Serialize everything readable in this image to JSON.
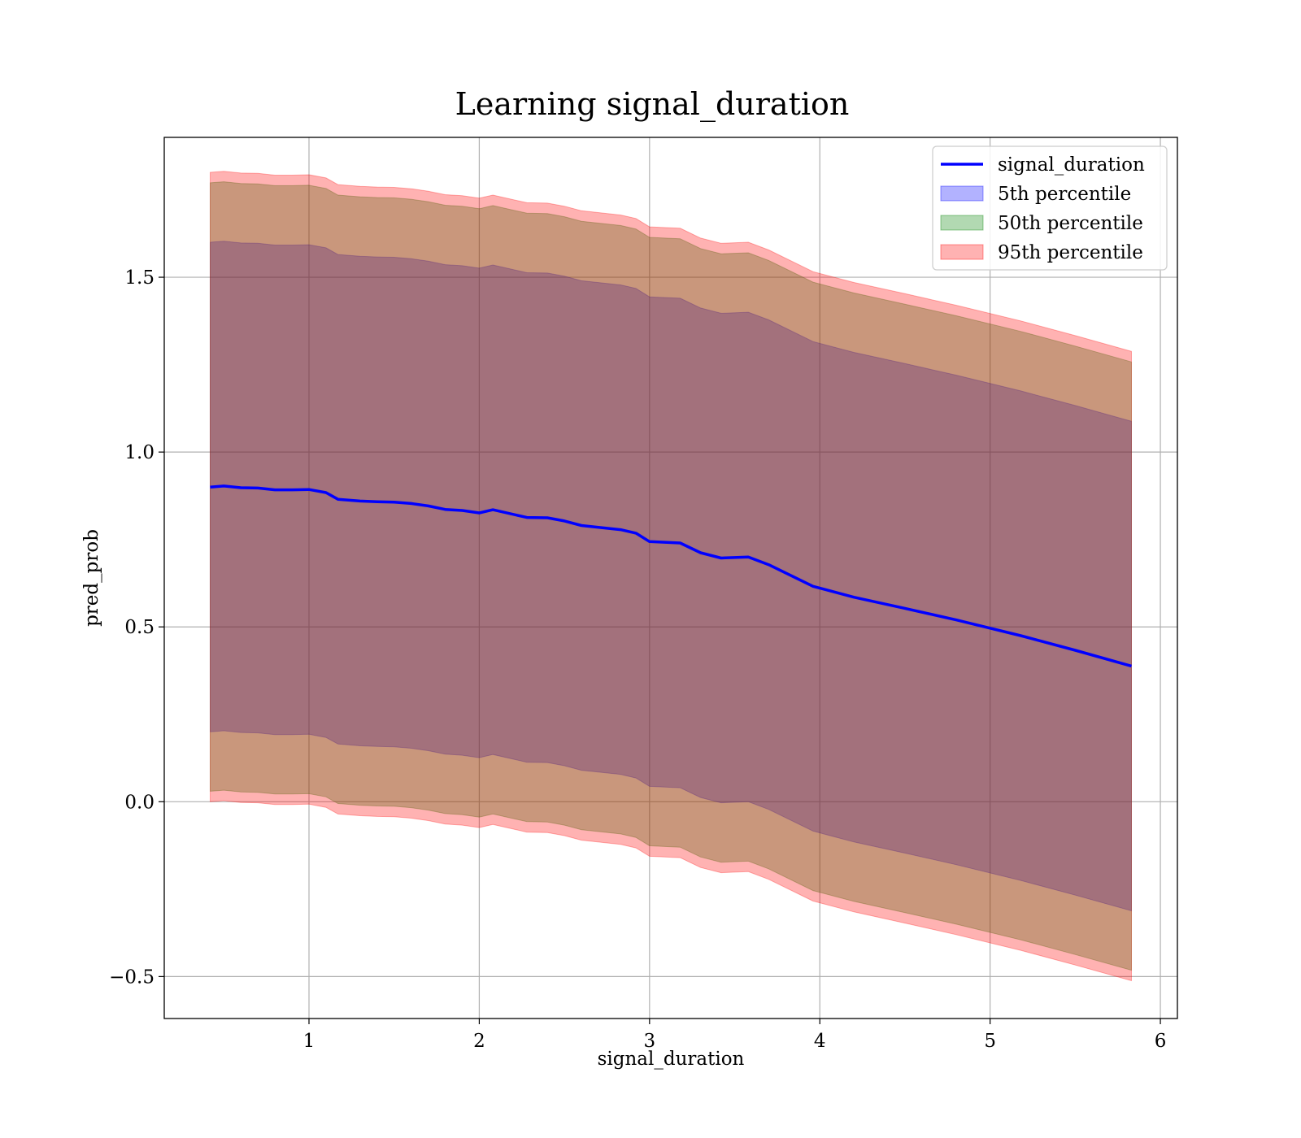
{
  "chart_data": {
    "type": "line",
    "title": "Learning signal_duration",
    "xlabel": "signal_duration",
    "ylabel": "pred_prob",
    "xlim": [
      0.15,
      6.1
    ],
    "ylim": [
      -0.62,
      1.9
    ],
    "xticks": [
      1,
      2,
      3,
      4,
      5,
      6
    ],
    "xtick_labels": [
      "1",
      "2",
      "3",
      "4",
      "5",
      "6"
    ],
    "yticks": [
      -0.5,
      0.0,
      0.5,
      1.0,
      1.5
    ],
    "ytick_labels": [
      "−0.5",
      "0.0",
      "0.5",
      "1.0",
      "1.5"
    ],
    "grid": true,
    "legend_position": "top-right",
    "x": [
      0.42,
      0.5,
      0.6,
      0.7,
      0.8,
      0.9,
      1.0,
      1.1,
      1.17,
      1.3,
      1.4,
      1.5,
      1.6,
      1.7,
      1.8,
      1.9,
      2.0,
      2.08,
      2.28,
      2.4,
      2.5,
      2.6,
      2.83,
      2.92,
      3.0,
      3.18,
      3.3,
      3.42,
      3.58,
      3.7,
      3.96,
      4.2,
      4.5,
      4.8,
      5.18,
      5.5,
      5.83
    ],
    "series": [
      {
        "name": "signal_duration",
        "role": "line",
        "color": "#0000ff",
        "values": [
          0.9,
          0.903,
          0.898,
          0.897,
          0.892,
          0.892,
          0.893,
          0.884,
          0.865,
          0.86,
          0.858,
          0.857,
          0.853,
          0.846,
          0.836,
          0.833,
          0.826,
          0.835,
          0.813,
          0.812,
          0.803,
          0.79,
          0.778,
          0.768,
          0.744,
          0.74,
          0.712,
          0.697,
          0.7,
          0.678,
          0.616,
          0.585,
          0.553,
          0.52,
          0.475,
          0.433,
          0.388
        ]
      },
      {
        "name": "5th percentile",
        "role": "band",
        "color": "#0000ff",
        "alpha": 0.3,
        "lower": [
          0.2,
          0.203,
          0.198,
          0.197,
          0.192,
          0.192,
          0.193,
          0.184,
          0.165,
          0.16,
          0.158,
          0.157,
          0.153,
          0.146,
          0.136,
          0.133,
          0.126,
          0.135,
          0.113,
          0.112,
          0.103,
          0.09,
          0.078,
          0.068,
          0.044,
          0.04,
          0.012,
          -0.003,
          0.0,
          -0.022,
          -0.084,
          -0.115,
          -0.147,
          -0.18,
          -0.225,
          -0.267,
          -0.312
        ],
        "upper": [
          1.6,
          1.603,
          1.598,
          1.597,
          1.592,
          1.592,
          1.593,
          1.584,
          1.565,
          1.56,
          1.558,
          1.557,
          1.553,
          1.546,
          1.536,
          1.533,
          1.526,
          1.535,
          1.513,
          1.512,
          1.503,
          1.49,
          1.478,
          1.468,
          1.444,
          1.44,
          1.412,
          1.397,
          1.4,
          1.378,
          1.316,
          1.285,
          1.253,
          1.22,
          1.175,
          1.133,
          1.088
        ]
      },
      {
        "name": "50th percentile",
        "role": "band",
        "color": "#008000",
        "alpha": 0.3,
        "lower": [
          0.03,
          0.033,
          0.028,
          0.027,
          0.022,
          0.022,
          0.023,
          0.014,
          -0.005,
          -0.01,
          -0.012,
          -0.013,
          -0.017,
          -0.024,
          -0.034,
          -0.037,
          -0.044,
          -0.035,
          -0.057,
          -0.058,
          -0.067,
          -0.08,
          -0.092,
          -0.102,
          -0.126,
          -0.13,
          -0.158,
          -0.173,
          -0.17,
          -0.192,
          -0.254,
          -0.285,
          -0.317,
          -0.35,
          -0.395,
          -0.437,
          -0.482
        ],
        "upper": [
          1.77,
          1.773,
          1.768,
          1.767,
          1.762,
          1.762,
          1.763,
          1.754,
          1.735,
          1.73,
          1.728,
          1.727,
          1.723,
          1.716,
          1.706,
          1.703,
          1.696,
          1.705,
          1.683,
          1.682,
          1.673,
          1.66,
          1.648,
          1.638,
          1.614,
          1.61,
          1.582,
          1.567,
          1.57,
          1.548,
          1.486,
          1.455,
          1.423,
          1.39,
          1.345,
          1.303,
          1.258
        ]
      },
      {
        "name": "95th percentile",
        "role": "band",
        "color": "#ff0000",
        "alpha": 0.3,
        "lower": [
          0.0,
          0.003,
          -0.002,
          -0.003,
          -0.008,
          -0.008,
          -0.007,
          -0.016,
          -0.035,
          -0.04,
          -0.042,
          -0.043,
          -0.047,
          -0.054,
          -0.064,
          -0.067,
          -0.074,
          -0.065,
          -0.087,
          -0.088,
          -0.097,
          -0.11,
          -0.122,
          -0.132,
          -0.156,
          -0.16,
          -0.188,
          -0.203,
          -0.2,
          -0.222,
          -0.284,
          -0.315,
          -0.347,
          -0.38,
          -0.425,
          -0.467,
          -0.512
        ],
        "upper": [
          1.8,
          1.803,
          1.798,
          1.797,
          1.792,
          1.792,
          1.793,
          1.784,
          1.765,
          1.76,
          1.758,
          1.757,
          1.753,
          1.746,
          1.736,
          1.733,
          1.726,
          1.735,
          1.713,
          1.712,
          1.703,
          1.69,
          1.678,
          1.668,
          1.644,
          1.64,
          1.612,
          1.597,
          1.6,
          1.578,
          1.516,
          1.485,
          1.453,
          1.42,
          1.375,
          1.333,
          1.288
        ]
      }
    ]
  }
}
